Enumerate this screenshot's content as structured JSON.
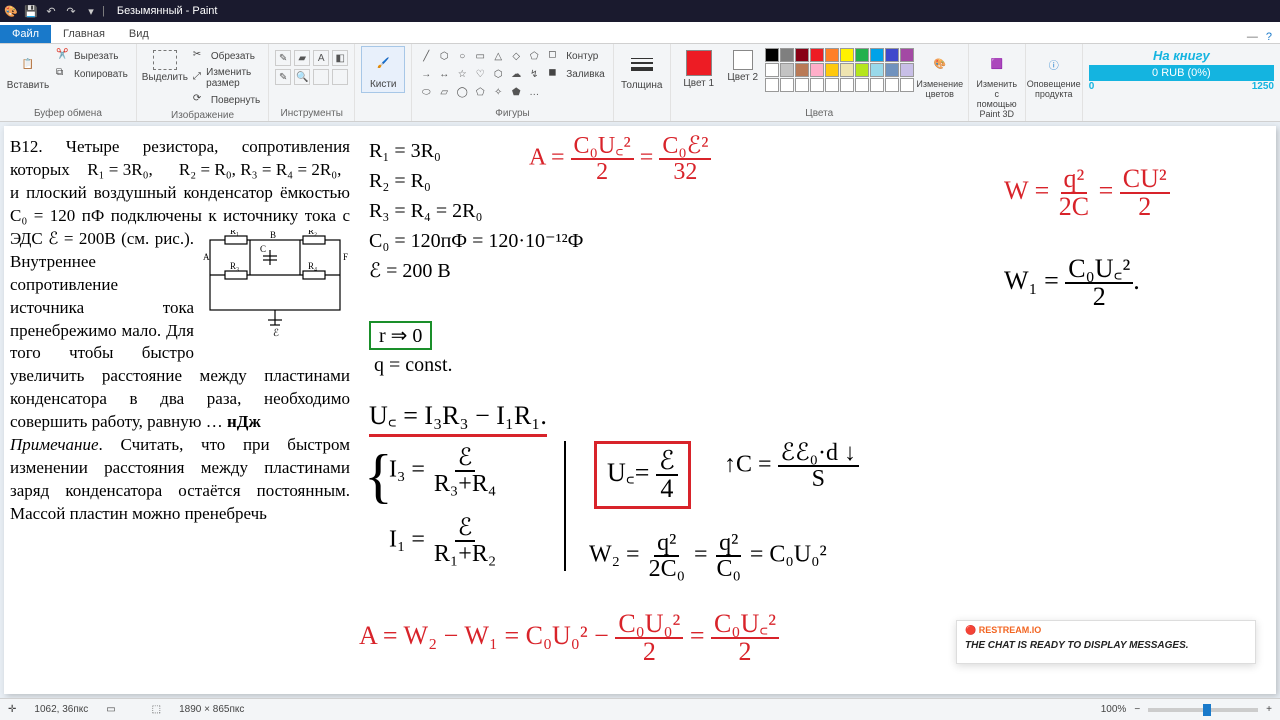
{
  "window": {
    "title": "Безымянный - Paint"
  },
  "tabs": {
    "file": "Файл",
    "home": "Главная",
    "view": "Вид"
  },
  "ribbon": {
    "clipboard": {
      "paste": "Вставить",
      "cut": "Вырезать",
      "copy": "Копировать",
      "label": "Буфер обмена"
    },
    "image": {
      "select": "Выделить",
      "crop": "Обрезать",
      "resize": "Изменить размер",
      "rotate": "Повернуть",
      "label": "Изображение"
    },
    "tools": {
      "label": "Инструменты"
    },
    "brushes": {
      "btn": "Кисти"
    },
    "shapes": {
      "outline": "Контур",
      "fill": "Заливка",
      "label": "Фигуры"
    },
    "size": {
      "label": "Толщина"
    },
    "colors": {
      "c1": "Цвет 1",
      "c2": "Цвет 2",
      "edit": "Изменение цветов",
      "label": "Цвета",
      "palette": [
        "#000000",
        "#7f7f7f",
        "#880015",
        "#ed1c24",
        "#ff7f27",
        "#fff200",
        "#22b14c",
        "#00a2e8",
        "#3f48cc",
        "#a349a4",
        "#ffffff",
        "#c3c3c3",
        "#b97a57",
        "#ffaec9",
        "#ffc90e",
        "#efe4b0",
        "#b5e61d",
        "#99d9ea",
        "#7092be",
        "#c8bfe7",
        "#ffffff",
        "#ffffff",
        "#ffffff",
        "#ffffff",
        "#ffffff",
        "#ffffff",
        "#ffffff",
        "#ffffff",
        "#ffffff",
        "#ffffff"
      ],
      "c1_val": "#ed1c24",
      "c2_val": "#ffffff"
    },
    "p3d": {
      "label": "Изменить с помощью Paint 3D"
    },
    "alert": {
      "label": "Оповещение продукта"
    }
  },
  "donation": {
    "title": "На книгу",
    "amount": "0 RUB (0%)",
    "min": "0",
    "max": "1250"
  },
  "problem": {
    "text": "В12. Четыре резистора, сопротивления которых    R₁ = 3R₀,      R₂ = R₀, R₃ = R₄ = 2R₀,   и плоский воздушный конденсатор ёмкостью C₀ = 120 пФ подключены к источнику тока с ЭДС ℰ = 200В",
    "text2": "(см. рис.). Внутреннее сопротивление источника тока пренебрежимо мало. Для того чтобы быстро увеличить расстояние между пластинами конденсатора в два раза, необходимо совершить работу, равную … ",
    "unit": "нДж",
    "note": "Примечание",
    "note_text": ". Считать, что при быстром изменении расстояния между пластинами заряд конденсатора остаётся постоянным. Массой пластин можно пренебречь"
  },
  "hand": {
    "l1": "R₁ = 3R₀",
    "l2": "R₂ = R₀",
    "l3": "R₃ = R₄ = 2R₀",
    "l4": "C₀ = 120пФ = 120·10⁻¹²Ф",
    "l5": "ℰ = 200 В",
    "l6": "r ⇒ 0",
    "l7": "q = const.",
    "A_lhs": "A =",
    "A_f1n": "C₀U꜀²",
    "A_f1d": "2",
    "A_f2n": "C₀ℰ²",
    "A_f2d": "32",
    "W_lhs": "W =",
    "W_f1n": "q²",
    "W_f1d": "2C",
    "W_f2n": "CU²",
    "W_f2d": "2",
    "W1_lhs": "W₁ =",
    "W1_fn": "C₀U꜀²",
    "W1_fd": "2",
    "Uc_eq": "U꜀ = I₃R₃ − I₁R₁.",
    "I3_lhs": "I₃ =",
    "I3_n": "ℰ",
    "I3_d": "R₃+R₄",
    "I1_lhs": "I₁ =",
    "I1_n": "ℰ",
    "I1_d": "R₁+R₂",
    "Ucbox_lhs": "U꜀=",
    "Ucbox_n": "ℰ",
    "Ucbox_d": "4",
    "Carrow": "↑C =",
    "C_n": "ℰℰ₀·d ↓",
    "C_d": "S",
    "W2_lhs": "W₂ =",
    "W2_f1n": "q²",
    "W2_f1d": "2C₀",
    "W2_f2n": "q²",
    "W2_f2d": "C₀",
    "W2_rhs": "= C₀U₀²",
    "Afin": "A = W₂ − W₁ = C₀U₀² −",
    "Afin_f1n": "C₀U₀²",
    "Afin_f1d": "2",
    "Afin_eq": "=",
    "Afin_f2n": "C₀U꜀²",
    "Afin_f2d": "2"
  },
  "chat": {
    "brand": "🔴 RESTREAM.IO",
    "msg": "The chat is ready to display messages."
  },
  "status": {
    "pos": "1062, 36пкс",
    "size": "1890 × 865пкс",
    "zoom": "100%"
  }
}
